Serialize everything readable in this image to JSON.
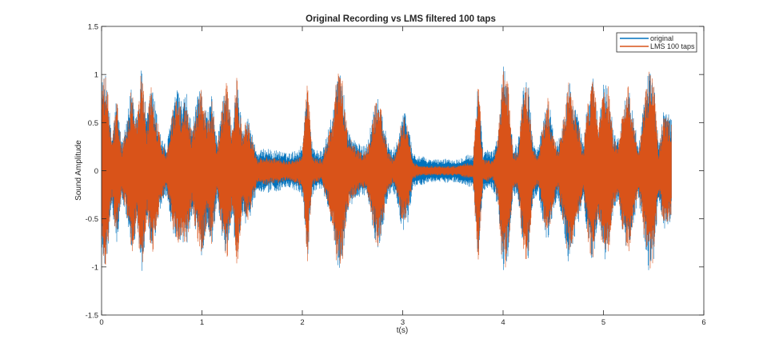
{
  "chart_data": {
    "type": "line",
    "title": "Original Recording vs LMS filtered 100 taps",
    "xlabel": "t(s)",
    "ylabel": "Sound Amplitude",
    "xlim": [
      0,
      6
    ],
    "ylim": [
      -1.5,
      1.5
    ],
    "x_ticks": [
      "0",
      "1",
      "2",
      "3",
      "4",
      "5",
      "6"
    ],
    "y_ticks": [
      "-1.5",
      "-1",
      "-0.5",
      "0",
      "0.5",
      "1",
      "1.5"
    ],
    "grid": false,
    "legend_position": "top-right",
    "duration_s": 5.68,
    "envelope_t": [
      0.0,
      0.05,
      0.1,
      0.15,
      0.2,
      0.25,
      0.3,
      0.35,
      0.4,
      0.45,
      0.5,
      0.55,
      0.6,
      0.65,
      0.7,
      0.75,
      0.8,
      0.85,
      0.9,
      0.95,
      1.0,
      1.05,
      1.1,
      1.15,
      1.2,
      1.25,
      1.3,
      1.35,
      1.4,
      1.45,
      1.5,
      1.55,
      1.6,
      1.65,
      1.7,
      1.75,
      1.8,
      1.85,
      1.9,
      1.95,
      2.0,
      2.05,
      2.1,
      2.15,
      2.2,
      2.25,
      2.3,
      2.35,
      2.4,
      2.45,
      2.5,
      2.55,
      2.6,
      2.65,
      2.7,
      2.75,
      2.8,
      2.85,
      2.9,
      2.95,
      3.0,
      3.05,
      3.1,
      3.15,
      3.2,
      3.25,
      3.3,
      3.35,
      3.4,
      3.45,
      3.5,
      3.55,
      3.6,
      3.65,
      3.7,
      3.75,
      3.8,
      3.85,
      3.9,
      3.95,
      4.0,
      4.05,
      4.1,
      4.15,
      4.2,
      4.25,
      4.3,
      4.35,
      4.4,
      4.45,
      4.5,
      4.55,
      4.6,
      4.65,
      4.7,
      4.75,
      4.8,
      4.85,
      4.9,
      4.95,
      5.0,
      5.05,
      5.1,
      5.15,
      5.2,
      5.25,
      5.3,
      5.35,
      5.4,
      5.45,
      5.5,
      5.55,
      5.6,
      5.65,
      5.68
    ],
    "series": [
      {
        "name": "original",
        "color": "#0072BD",
        "envelope": [
          0.95,
          1.0,
          0.35,
          0.8,
          0.3,
          0.5,
          0.95,
          0.6,
          1.1,
          0.55,
          0.95,
          0.6,
          0.35,
          0.25,
          0.65,
          0.85,
          0.75,
          0.8,
          0.45,
          0.75,
          0.9,
          0.6,
          0.8,
          0.3,
          0.7,
          0.95,
          0.45,
          1.0,
          0.45,
          0.6,
          0.4,
          0.2,
          0.22,
          0.25,
          0.2,
          0.22,
          0.2,
          0.18,
          0.2,
          0.22,
          0.28,
          0.95,
          0.25,
          0.22,
          0.2,
          0.4,
          0.6,
          1.05,
          0.95,
          0.45,
          0.35,
          0.3,
          0.25,
          0.3,
          0.6,
          0.85,
          0.6,
          0.3,
          0.2,
          0.35,
          0.65,
          0.55,
          0.2,
          0.15,
          0.15,
          0.12,
          0.12,
          0.12,
          0.12,
          0.13,
          0.12,
          0.12,
          0.15,
          0.18,
          0.15,
          0.95,
          0.2,
          0.22,
          0.2,
          0.4,
          1.1,
          0.9,
          0.25,
          0.3,
          0.9,
          0.95,
          0.3,
          0.25,
          0.55,
          0.8,
          0.4,
          0.3,
          0.6,
          1.0,
          0.75,
          0.55,
          0.3,
          0.8,
          1.0,
          0.5,
          0.95,
          0.9,
          0.4,
          0.35,
          0.7,
          0.9,
          0.55,
          0.3,
          0.7,
          1.05,
          0.95,
          0.3,
          0.65,
          0.6,
          0.55
        ]
      },
      {
        "name": "LMS 100 taps",
        "color": "#D95319",
        "envelope": [
          0.92,
          1.0,
          0.3,
          0.75,
          0.25,
          0.45,
          0.92,
          0.55,
          1.12,
          0.5,
          0.95,
          0.55,
          0.3,
          0.2,
          0.6,
          0.82,
          0.7,
          0.78,
          0.4,
          0.72,
          0.88,
          0.55,
          0.78,
          0.25,
          0.68,
          0.95,
          0.4,
          1.05,
          0.4,
          0.55,
          0.35,
          0.12,
          0.14,
          0.15,
          0.13,
          0.14,
          0.12,
          0.1,
          0.12,
          0.13,
          0.2,
          1.0,
          0.15,
          0.13,
          0.12,
          0.35,
          0.55,
          1.05,
          0.95,
          0.4,
          0.3,
          0.22,
          0.18,
          0.25,
          0.55,
          0.85,
          0.55,
          0.22,
          0.12,
          0.28,
          0.6,
          0.5,
          0.1,
          0.06,
          0.05,
          0.05,
          0.05,
          0.05,
          0.05,
          0.05,
          0.05,
          0.05,
          0.07,
          0.08,
          0.07,
          1.05,
          0.12,
          0.12,
          0.1,
          0.35,
          1.12,
          0.9,
          0.18,
          0.2,
          0.88,
          0.95,
          0.22,
          0.15,
          0.5,
          0.78,
          0.35,
          0.22,
          0.55,
          1.0,
          0.72,
          0.5,
          0.22,
          0.78,
          1.0,
          0.45,
          0.95,
          0.88,
          0.35,
          0.28,
          0.68,
          0.9,
          0.5,
          0.22,
          0.65,
          1.05,
          0.95,
          0.22,
          0.6,
          0.55,
          0.5
        ]
      }
    ]
  }
}
